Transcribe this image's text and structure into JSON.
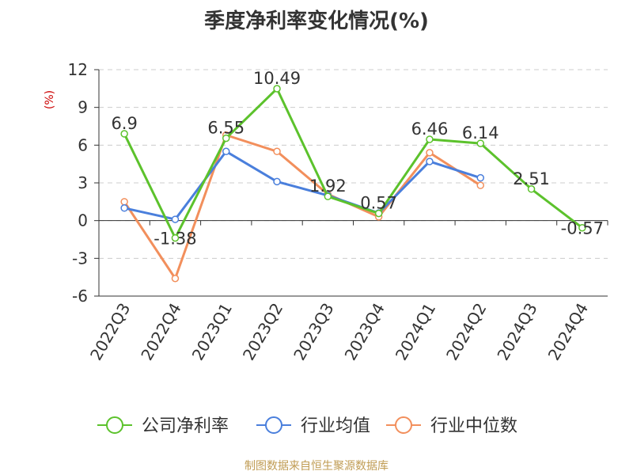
{
  "chart_data": {
    "type": "line",
    "title": "季度净利率变化情况(%)",
    "ylabel": "(%)",
    "xlabel": "",
    "ylim": [
      -6,
      12
    ],
    "yticks": [
      -6,
      -3,
      0,
      3,
      6,
      9,
      12
    ],
    "grid": true,
    "legend_position": "bottom",
    "categories": [
      "2022Q3",
      "2022Q4",
      "2023Q1",
      "2023Q2",
      "2023Q3",
      "2023Q4",
      "2024Q1",
      "2024Q2",
      "2024Q3",
      "2024Q4"
    ],
    "series": [
      {
        "name": "公司净利率",
        "color": "#5cc22c",
        "values": [
          6.9,
          -1.38,
          6.55,
          10.49,
          1.92,
          0.57,
          6.46,
          6.14,
          2.51,
          -0.57
        ],
        "labels": [
          "6.9",
          "-1.38",
          "6.55",
          "10.49",
          "1.92",
          "0.57",
          "6.46",
          "6.14",
          "2.51",
          "-0.57"
        ]
      },
      {
        "name": "行业均值",
        "color": "#4a7fdc",
        "values": [
          1.0,
          0.1,
          5.5,
          3.1,
          2.0,
          0.6,
          4.7,
          3.4,
          null,
          null
        ]
      },
      {
        "name": "行业中位数",
        "color": "#f28f5c",
        "values": [
          1.5,
          -4.6,
          6.8,
          5.5,
          2.1,
          0.3,
          5.4,
          2.8,
          null,
          null
        ]
      }
    ]
  },
  "source_text": "制图数据来自恒生聚源数据库"
}
